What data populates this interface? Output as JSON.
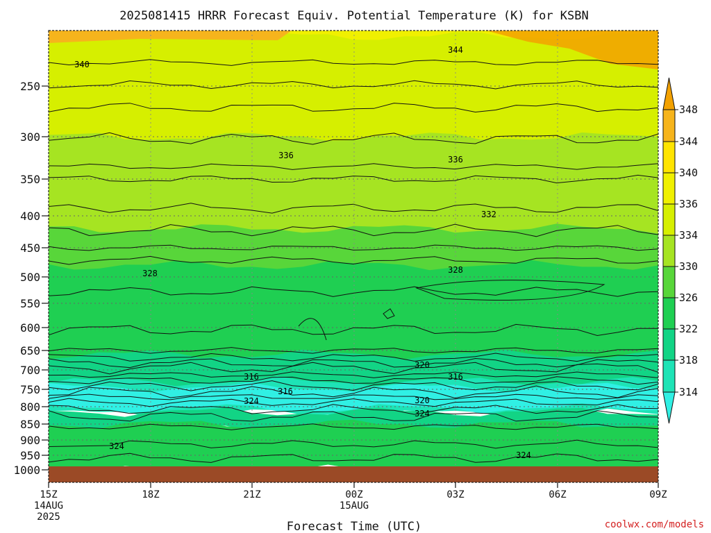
{
  "chart_data": {
    "type": "heatmap",
    "title": "2025081415 HRRR Forecast Equiv. Potential Temperature (K) for KSBN",
    "xlabel": "Forecast Time (UTC)",
    "ylabel": "",
    "x_ticks": [
      "15Z",
      "18Z",
      "21Z",
      "00Z",
      "03Z",
      "06Z",
      "09Z"
    ],
    "x_date_labels": {
      "15Z": [
        "14AUG",
        "2025"
      ],
      "00Z": [
        "15AUG"
      ]
    },
    "y_ticks": [
      "250",
      "300",
      "350",
      "400",
      "450",
      "500",
      "550",
      "600",
      "650",
      "700",
      "750",
      "800",
      "850",
      "900",
      "950",
      "1000"
    ],
    "y_scale": "log-pressure (inverted)",
    "grid": true,
    "colorbar": {
      "levels": [
        "348",
        "344",
        "340",
        "336",
        "334",
        "330",
        "326",
        "322",
        "318",
        "314"
      ],
      "colors": [
        "#f6b41c",
        "#ffe400",
        "#f0f000",
        "#d6ef00",
        "#a6e422",
        "#58d63a",
        "#1fcf52",
        "#12d485",
        "#1ee3b6",
        "#2defdc"
      ],
      "over_color": "#f3a100",
      "under_color": "#30f0e4"
    },
    "contour_labels": [
      "344",
      "340",
      "336",
      "336",
      "332",
      "328",
      "328",
      "320",
      "316",
      "316",
      "316",
      "320",
      "324",
      "324",
      "324",
      "324"
    ],
    "ground_color": "#9b4a26"
  },
  "footer": {
    "credit": "coolwx.com/models"
  }
}
